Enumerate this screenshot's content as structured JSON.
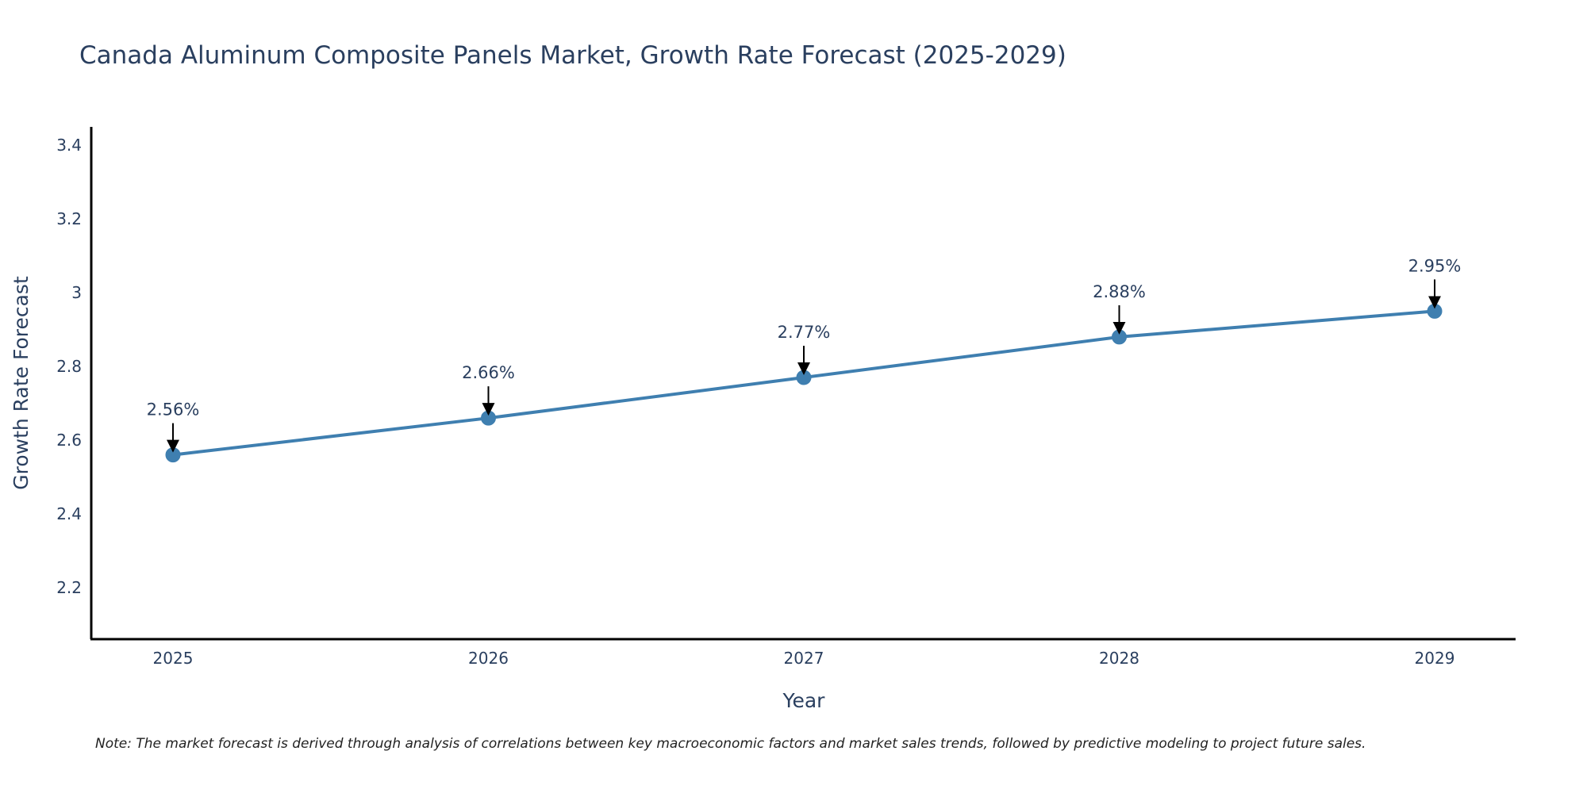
{
  "chart_data": {
    "type": "line",
    "title": "Canada Aluminum Composite Panels Market, Growth Rate Forecast (2025-2029)",
    "xlabel": "Year",
    "ylabel": "Growth Rate Forecast",
    "categories": [
      "2025",
      "2026",
      "2027",
      "2028",
      "2029"
    ],
    "series": [
      {
        "values": [
          2.56,
          2.66,
          2.77,
          2.88,
          2.95
        ],
        "color": "#3f7fb0"
      }
    ],
    "data_labels": [
      "2.56%",
      "2.66%",
      "2.77%",
      "2.88%",
      "2.95%"
    ],
    "y_ticks": [
      2.2,
      2.4,
      2.6,
      2.8,
      3,
      3.2,
      3.4
    ],
    "y_tick_labels": [
      "2.2",
      "2.4",
      "2.6",
      "2.8",
      "3",
      "3.2",
      "3.4"
    ],
    "ylim": [
      2.06,
      3.45
    ],
    "grid": false,
    "legend": false,
    "note": "Note: The market forecast is derived through analysis of correlations between key macroeconomic factors and market sales trends, followed by predictive modeling to project future sales.",
    "axis_color": "#000000",
    "text_color": "#2a3f5f",
    "arrow_color": "#000000"
  }
}
